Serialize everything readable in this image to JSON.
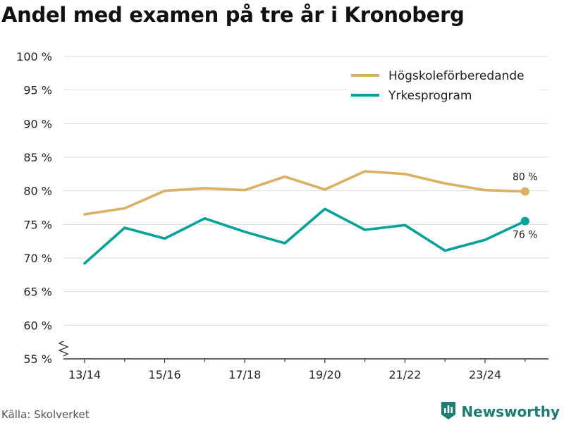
{
  "colors": {
    "series_1": "#dab063",
    "series_2": "#00a399",
    "grid": "#dddddd",
    "axis": "#333333",
    "brand": "#1b7d73"
  },
  "source": "Källa: Skolverket",
  "brand": {
    "name": "Newsworthy",
    "icon": "bar-chart-logo-icon"
  },
  "axis_break": {
    "icon": "axis-break-icon"
  },
  "chart_data": {
    "type": "line",
    "title": "Andel med examen på tre år i Kronoberg",
    "xlabel": "",
    "ylabel": "",
    "x": [
      "13/14",
      "14/15",
      "15/16",
      "16/17",
      "17/18",
      "18/19",
      "19/20",
      "20/21",
      "21/22",
      "22/23",
      "23/24",
      "24/25"
    ],
    "x_tick_labels": [
      "13/14",
      "15/16",
      "17/18",
      "19/20",
      "21/22",
      "23/24"
    ],
    "y_ticks": [
      55,
      60,
      65,
      70,
      75,
      80,
      85,
      90,
      95,
      100
    ],
    "y_tick_labels": [
      "55 %",
      "60 %",
      "65 %",
      "70 %",
      "75 %",
      "80 %",
      "85 %",
      "90 %",
      "95 %",
      "100 %"
    ],
    "ylim": [
      55,
      100
    ],
    "grid": true,
    "legend_position": "top-right",
    "series": [
      {
        "name": "Högskoleförberedande",
        "values": [
          76.5,
          77.4,
          80.0,
          80.4,
          80.1,
          82.1,
          80.2,
          82.9,
          82.5,
          81.1,
          80.1,
          79.9
        ],
        "end_label": "80 %"
      },
      {
        "name": "Yrkesprogram",
        "values": [
          69.2,
          74.5,
          72.9,
          75.9,
          73.9,
          72.2,
          77.3,
          74.2,
          74.9,
          71.1,
          72.7,
          75.5
        ],
        "end_label": "76 %"
      }
    ]
  }
}
